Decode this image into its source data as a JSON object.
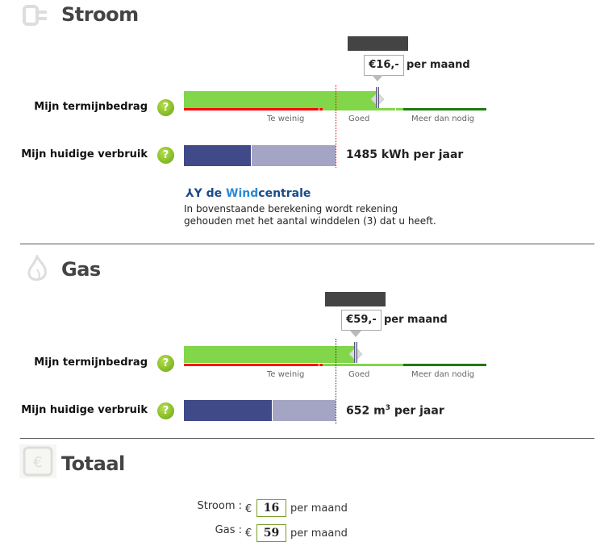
{
  "stroom": {
    "title": "Stroom",
    "icon": "plug-icon",
    "price": "€16,-",
    "per": "per maand",
    "termijn_label": "Mijn termijnbedrag",
    "verbruik_label": "Mijn huidige verbruik",
    "help": "?",
    "scale": [
      "Te weinig",
      "Goed",
      "Meer dan nodig"
    ],
    "usage": "1485 kWh per jaar",
    "brand": "de Windcentrale",
    "brand_de": "de ",
    "brand_wind": "Wind",
    "brand_centrale": "centrale",
    "note1": "In bovenstaande berekening wordt rekening",
    "note2": "gehouden met het aantal winddelen (3) dat u heeft."
  },
  "gas": {
    "title": "Gas",
    "icon": "flame-icon",
    "price": "€59,-",
    "per": "per maand",
    "termijn_label": "Mijn termijnbedrag",
    "verbruik_label": "Mijn huidige verbruik",
    "help": "?",
    "scale": [
      "Te weinig",
      "Goed",
      "Meer dan nodig"
    ],
    "usage_num": "652 m",
    "usage_sup": "3",
    "usage_rest": " per jaar"
  },
  "totaal": {
    "title": "Totaal",
    "icon": "euro-icon",
    "rows": [
      {
        "label": "Stroom :",
        "cur": "€",
        "value": "16",
        "per": "per maand"
      },
      {
        "label": "Gas :",
        "cur": "€",
        "value": "59",
        "per": "per maand"
      }
    ]
  },
  "colors": {
    "bar_green": "#82d64a",
    "too_little": "#ff0000",
    "good": "#82d64a",
    "more": "#1f7a10",
    "usage_dark": "#404a88",
    "usage_light": "#a4a5c4"
  }
}
